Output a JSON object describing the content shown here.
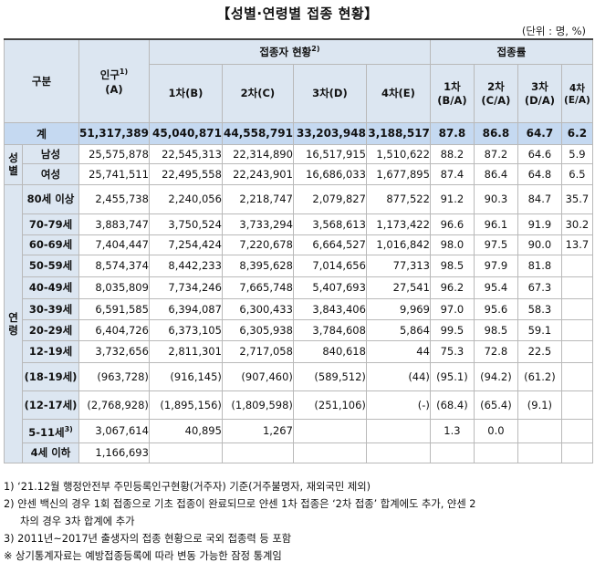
{
  "title": "【성별·연령별 접종 현황】",
  "unit": "(단위 : 명, %)",
  "headers": {
    "category": "구분",
    "population": "인구",
    "population_sup": "1)",
    "population_sub": "(A)",
    "vaccinated_group": "접종자 현황",
    "vaccinated_sup": "2)",
    "rate_group": "접종률",
    "dose1": "1차(B)",
    "dose2": "2차(C)",
    "dose3": "3차(D)",
    "dose4": "4차(E)",
    "rate1_top": "1차",
    "rate1_bot": "(B/A)",
    "rate2_top": "2차",
    "rate2_bot": "(C/A)",
    "rate3_top": "3차",
    "rate3_bot": "(D/A)",
    "rate4_top": "4차",
    "rate4_bot": "(E/A)"
  },
  "groups": {
    "sex": "성별",
    "age": "연령"
  },
  "total": {
    "label": "계",
    "pop": "51,317,389",
    "d1": "45,040,871",
    "d2": "44,558,791",
    "d3": "33,203,948",
    "d4": "3,188,517",
    "r1": "87.8",
    "r2": "86.8",
    "r3": "64.7",
    "r4": "6.2"
  },
  "sex_rows": [
    {
      "label": "남성",
      "pop": "25,575,878",
      "d1": "22,545,313",
      "d2": "22,314,890",
      "d3": "16,517,915",
      "d4": "1,510,622",
      "r1": "88.2",
      "r2": "87.2",
      "r3": "64.6",
      "r4": "5.9"
    },
    {
      "label": "여성",
      "pop": "25,741,511",
      "d1": "22,495,558",
      "d2": "22,243,901",
      "d3": "16,686,033",
      "d4": "1,677,895",
      "r1": "87.4",
      "r2": "86.4",
      "r3": "64.8",
      "r4": "6.5"
    }
  ],
  "age_rows": [
    {
      "label": "80세 이상",
      "pop": "2,455,738",
      "d1": "2,240,056",
      "d2": "2,218,747",
      "d3": "2,079,827",
      "d4": "877,522",
      "r1": "91.2",
      "r2": "90.3",
      "r3": "84.7",
      "r4": "35.7"
    },
    {
      "label": "70-79세",
      "pop": "3,883,747",
      "d1": "3,750,524",
      "d2": "3,733,294",
      "d3": "3,568,613",
      "d4": "1,173,422",
      "r1": "96.6",
      "r2": "96.1",
      "r3": "91.9",
      "r4": "30.2"
    },
    {
      "label": "60-69세",
      "pop": "7,404,447",
      "d1": "7,254,424",
      "d2": "7,220,678",
      "d3": "6,664,527",
      "d4": "1,016,842",
      "r1": "98.0",
      "r2": "97.5",
      "r3": "90.0",
      "r4": "13.7"
    },
    {
      "label": "50-59세",
      "pop": "8,574,374",
      "d1": "8,442,233",
      "d2": "8,395,628",
      "d3": "7,014,656",
      "d4": "77,313",
      "r1": "98.5",
      "r2": "97.9",
      "r3": "81.8",
      "r4": ""
    },
    {
      "label": "40-49세",
      "pop": "8,035,809",
      "d1": "7,734,246",
      "d2": "7,665,748",
      "d3": "5,407,693",
      "d4": "27,541",
      "r1": "96.2",
      "r2": "95.4",
      "r3": "67.3",
      "r4": ""
    },
    {
      "label": "30-39세",
      "pop": "6,591,585",
      "d1": "6,394,087",
      "d2": "6,300,433",
      "d3": "3,843,406",
      "d4": "9,969",
      "r1": "97.0",
      "r2": "95.6",
      "r3": "58.3",
      "r4": ""
    },
    {
      "label": "20-29세",
      "pop": "6,404,726",
      "d1": "6,373,105",
      "d2": "6,305,938",
      "d3": "3,784,608",
      "d4": "5,864",
      "r1": "99.5",
      "r2": "98.5",
      "r3": "59.1",
      "r4": ""
    },
    {
      "label": "12-19세",
      "pop": "3,732,656",
      "d1": "2,811,301",
      "d2": "2,717,058",
      "d3": "840,618",
      "d4": "44",
      "r1": "75.3",
      "r2": "72.8",
      "r3": "22.5",
      "r4": ""
    },
    {
      "label": "(18-19세)",
      "pop": "(963,728)",
      "d1": "(916,145)",
      "d2": "(907,460)",
      "d3": "(589,512)",
      "d4": "(44)",
      "r1": "(95.1)",
      "r2": "(94.2)",
      "r3": "(61.2)",
      "r4": ""
    },
    {
      "label": "(12-17세)",
      "pop": "(2,768,928)",
      "d1": "(1,895,156)",
      "d2": "(1,809,598)",
      "d3": "(251,106)",
      "d4": "(-)",
      "r1": "(68.4)",
      "r2": "(65.4)",
      "r3": "(9.1)",
      "r4": ""
    },
    {
      "label": "5-11세",
      "label_sup": "3)",
      "pop": "3,067,614",
      "d1": "40,895",
      "d2": "1,267",
      "d3": "",
      "d4": "",
      "r1": "1.3",
      "r2": "0.0",
      "r3": "",
      "r4": ""
    },
    {
      "label": "4세 이하",
      "pop": "1,166,693",
      "d1": "",
      "d2": "",
      "d3": "",
      "d4": "",
      "r1": "",
      "r2": "",
      "r3": "",
      "r4": ""
    }
  ],
  "notes": [
    "1) ‘21.12월 행정안전부 주민등록인구현황(거주자) 기준(거주불명자, 재외국민 제외)",
    "2) 얀센 백신의 경우 1회 접종으로 기초 접종이 완료되므로 얀센 1차 접종은 ‘2차 접종’ 합계에도 추가, 얀센 2",
    "차의 경우 3차 합계에 추가",
    "3) 2011년~2017년 출생자의 접종 현황으로 국외 접종력 등 포함",
    "※ 상기통계자료는 예방접종등록에 따라 변동 가능한 잠정 통계임"
  ]
}
